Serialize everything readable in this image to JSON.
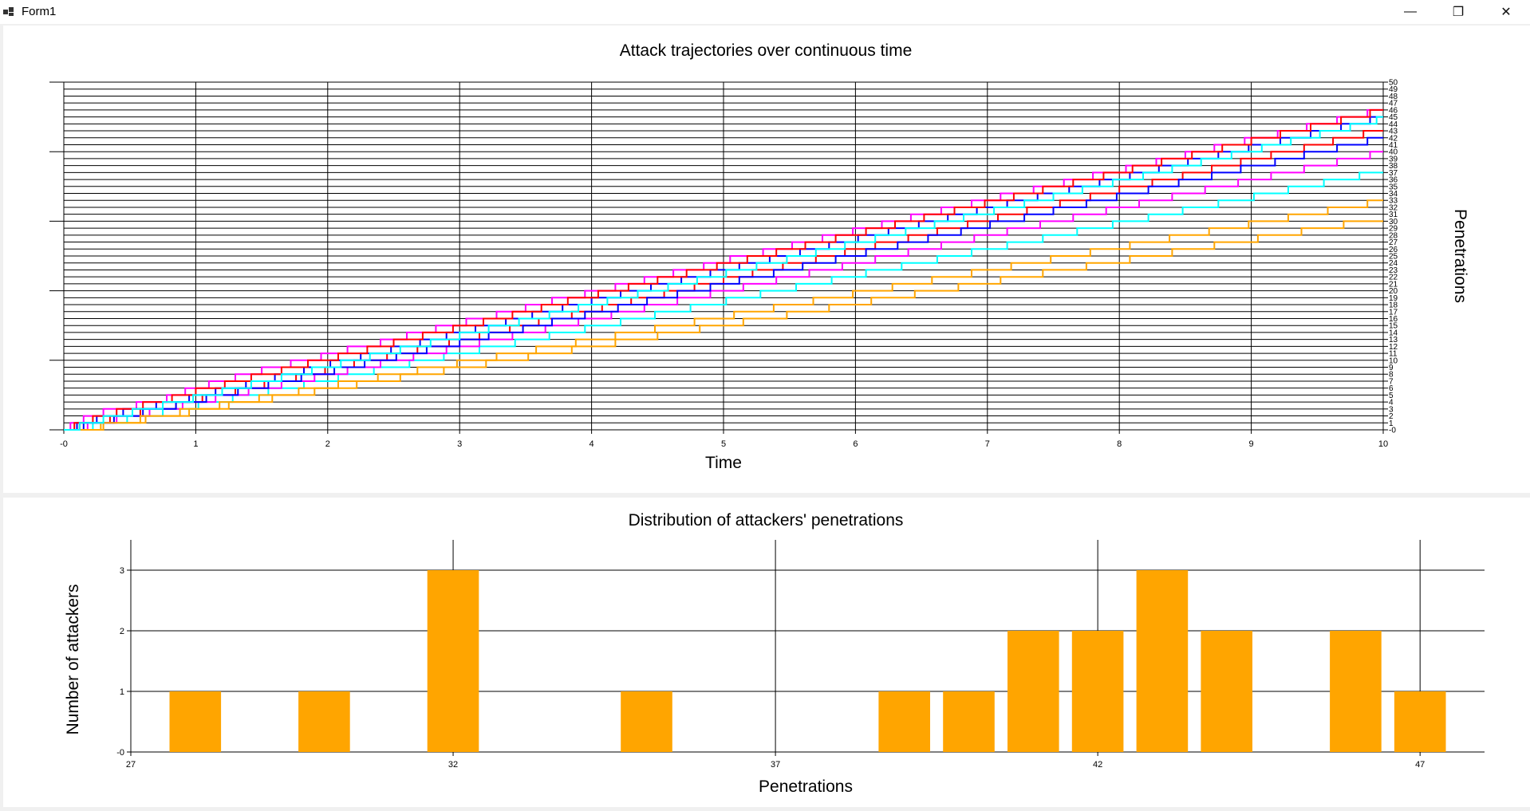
{
  "window": {
    "title": "Form1",
    "minimize_glyph": "—",
    "maximize_glyph": "❐",
    "close_glyph": "✕"
  },
  "chart_data": [
    {
      "type": "line",
      "step": true,
      "title": "Attack trajectories over continuous time",
      "xlabel": "Time",
      "ylabel": "Penetrations",
      "xlim": [
        0,
        10
      ],
      "ylim": [
        0,
        50
      ],
      "x_tick_labels": [
        "-0",
        "1",
        "2",
        "3",
        "4",
        "5",
        "6",
        "7",
        "8",
        "9",
        "10"
      ],
      "y_tick_labels": [
        "-0",
        "1",
        "2",
        "3",
        "4",
        "5",
        "6",
        "7",
        "8",
        "9",
        "10",
        "11",
        "12",
        "13",
        "14",
        "15",
        "16",
        "17",
        "18",
        "19",
        "20",
        "21",
        "22",
        "23",
        "24",
        "25",
        "26",
        "27",
        "28",
        "29",
        "30",
        "31",
        "32",
        "33",
        "34",
        "35",
        "36",
        "37",
        "38",
        "39",
        "40",
        "41",
        "42",
        "43",
        "44",
        "45",
        "46",
        "47",
        "48",
        "49",
        "50"
      ],
      "grid": true,
      "series_colors": [
        "#ff0000",
        "#ff00ff",
        "#0000ff",
        "#ffa500",
        "#00ffff"
      ],
      "series": [
        {
          "x": [
            0.0,
            0.12,
            0.35,
            0.58,
            0.85,
            1.05,
            1.3,
            1.52,
            1.76,
            1.98,
            2.2,
            2.45,
            2.68,
            2.92,
            3.15,
            3.38,
            3.6,
            3.85,
            4.08,
            4.3,
            4.55,
            4.78,
            5.0,
            5.22,
            5.45,
            5.7,
            5.92,
            6.15,
            6.4,
            6.62,
            6.85,
            7.08,
            7.3,
            7.55,
            7.78,
            8.0,
            8.25,
            8.48,
            8.7,
            8.92,
            9.15,
            9.4,
            9.62,
            9.85,
            10.0
          ],
          "y": [
            0,
            1,
            2,
            3,
            4,
            5,
            6,
            7,
            8,
            9,
            10,
            11,
            12,
            13,
            14,
            15,
            16,
            17,
            18,
            19,
            20,
            21,
            22,
            23,
            24,
            25,
            26,
            27,
            28,
            29,
            30,
            31,
            32,
            33,
            34,
            35,
            36,
            37,
            38,
            39,
            40,
            41,
            42,
            43,
            43
          ]
        },
        {
          "x": [
            0.0,
            0.05,
            0.15,
            0.3,
            0.55,
            0.78,
            0.92,
            1.1,
            1.3,
            1.5,
            1.72,
            1.95,
            2.15,
            2.4,
            2.6,
            2.82,
            3.05,
            3.28,
            3.5,
            3.7,
            3.95,
            4.18,
            4.4,
            4.62,
            4.85,
            5.05,
            5.3,
            5.52,
            5.75,
            5.98,
            6.2,
            6.42,
            6.65,
            6.88,
            7.1,
            7.35,
            7.58,
            7.8,
            8.05,
            8.28,
            8.5,
            8.72,
            8.95,
            9.2,
            9.42,
            9.65,
            9.88,
            10.0
          ],
          "y": [
            0,
            1,
            2,
            3,
            4,
            5,
            6,
            7,
            8,
            9,
            10,
            11,
            12,
            13,
            14,
            15,
            16,
            17,
            18,
            19,
            20,
            21,
            22,
            23,
            24,
            25,
            26,
            27,
            28,
            29,
            30,
            31,
            32,
            33,
            34,
            35,
            36,
            37,
            38,
            39,
            40,
            41,
            42,
            43,
            44,
            45,
            46,
            46
          ]
        },
        {
          "x": [
            0.0,
            0.1,
            0.25,
            0.45,
            0.7,
            0.95,
            1.15,
            1.38,
            1.6,
            1.82,
            2.02,
            2.25,
            2.48,
            2.7,
            2.9,
            3.12,
            3.35,
            3.55,
            3.78,
            4.0,
            4.22,
            4.45,
            4.68,
            4.9,
            5.12,
            5.35,
            5.58,
            5.8,
            6.02,
            6.25,
            6.48,
            6.7,
            6.92,
            7.15,
            7.38,
            7.62,
            7.85,
            8.08,
            8.3,
            8.52,
            8.75,
            8.98,
            9.22,
            9.45,
            9.68,
            9.9,
            10.0
          ],
          "y": [
            0,
            1,
            2,
            3,
            4,
            5,
            6,
            7,
            8,
            9,
            10,
            11,
            12,
            13,
            14,
            15,
            16,
            17,
            18,
            19,
            20,
            21,
            22,
            23,
            24,
            25,
            26,
            27,
            28,
            29,
            30,
            31,
            32,
            33,
            34,
            35,
            36,
            37,
            38,
            39,
            40,
            41,
            42,
            43,
            44,
            45,
            45
          ]
        },
        {
          "x": [
            0.0,
            0.3,
            0.62,
            0.95,
            1.25,
            1.58,
            1.9,
            2.22,
            2.55,
            2.88,
            3.2,
            3.52,
            3.85,
            4.18,
            4.5,
            4.82,
            5.15,
            5.48,
            5.8,
            6.12,
            6.45,
            6.78,
            7.1,
            7.42,
            7.75,
            8.08,
            8.4,
            8.72,
            9.05,
            9.38,
            9.7,
            10.0
          ],
          "y": [
            0,
            1,
            2,
            3,
            4,
            5,
            6,
            7,
            8,
            9,
            10,
            11,
            12,
            13,
            14,
            15,
            16,
            17,
            18,
            19,
            20,
            21,
            22,
            23,
            24,
            25,
            26,
            27,
            28,
            29,
            30,
            30
          ]
        },
        {
          "x": [
            0.0,
            0.22,
            0.48,
            0.75,
            1.02,
            1.28,
            1.55,
            1.82,
            2.08,
            2.35,
            2.62,
            2.88,
            3.15,
            3.42,
            3.68,
            3.95,
            4.22,
            4.48,
            4.75,
            5.02,
            5.28,
            5.55,
            5.82,
            6.08,
            6.35,
            6.62,
            6.88,
            7.15,
            7.42,
            7.68,
            7.95,
            8.22,
            8.48,
            8.75,
            9.02,
            9.28,
            9.55,
            9.82,
            10.0
          ],
          "y": [
            0,
            1,
            2,
            3,
            4,
            5,
            6,
            7,
            8,
            9,
            10,
            11,
            12,
            13,
            14,
            15,
            16,
            17,
            18,
            19,
            20,
            21,
            22,
            23,
            24,
            25,
            26,
            27,
            28,
            29,
            30,
            31,
            32,
            33,
            34,
            35,
            36,
            37,
            37
          ]
        },
        {
          "x": [
            0.0,
            0.08,
            0.22,
            0.4,
            0.6,
            0.82,
            1.0,
            1.22,
            1.42,
            1.65,
            1.85,
            2.08,
            2.3,
            2.5,
            2.72,
            2.95,
            3.18,
            3.4,
            3.62,
            3.82,
            4.05,
            4.28,
            4.5,
            4.72,
            4.95,
            5.18,
            5.4,
            5.62,
            5.85,
            6.08,
            6.3,
            6.52,
            6.75,
            6.98,
            7.2,
            7.42,
            7.65,
            7.88,
            8.1,
            8.32,
            8.55,
            8.78,
            9.0,
            9.22,
            9.45,
            9.68,
            9.9,
            10.0
          ],
          "y": [
            0,
            1,
            2,
            3,
            4,
            5,
            6,
            7,
            8,
            9,
            10,
            11,
            12,
            13,
            14,
            15,
            16,
            17,
            18,
            19,
            20,
            21,
            22,
            23,
            24,
            25,
            26,
            27,
            28,
            29,
            30,
            31,
            32,
            33,
            34,
            35,
            36,
            37,
            38,
            39,
            40,
            41,
            42,
            43,
            44,
            45,
            46,
            46
          ]
        },
        {
          "x": [
            0.0,
            0.18,
            0.4,
            0.65,
            0.9,
            1.15,
            1.4,
            1.65,
            1.9,
            2.15,
            2.4,
            2.65,
            2.9,
            3.15,
            3.4,
            3.65,
            3.9,
            4.15,
            4.4,
            4.65,
            4.9,
            5.15,
            5.4,
            5.65,
            5.9,
            6.15,
            6.4,
            6.65,
            6.9,
            7.15,
            7.4,
            7.65,
            7.9,
            8.15,
            8.4,
            8.65,
            8.9,
            9.15,
            9.4,
            9.65,
            9.9,
            10.0
          ],
          "y": [
            0,
            1,
            2,
            3,
            4,
            5,
            6,
            7,
            8,
            9,
            10,
            11,
            12,
            13,
            14,
            15,
            16,
            17,
            18,
            19,
            20,
            21,
            22,
            23,
            24,
            25,
            26,
            27,
            28,
            29,
            30,
            31,
            32,
            33,
            34,
            35,
            36,
            37,
            38,
            39,
            40,
            40
          ]
        },
        {
          "x": [
            0.0,
            0.15,
            0.38,
            0.6,
            0.85,
            1.08,
            1.32,
            1.55,
            1.8,
            2.05,
            2.28,
            2.52,
            2.75,
            3.0,
            3.22,
            3.48,
            3.7,
            3.95,
            4.2,
            4.42,
            4.65,
            4.9,
            5.12,
            5.38,
            5.6,
            5.85,
            6.08,
            6.32,
            6.55,
            6.8,
            7.02,
            7.28,
            7.5,
            7.75,
            7.98,
            8.22,
            8.45,
            8.7,
            8.92,
            9.18,
            9.4,
            9.65,
            9.88,
            10.0
          ],
          "y": [
            0,
            1,
            2,
            3,
            4,
            5,
            6,
            7,
            8,
            9,
            10,
            11,
            12,
            13,
            14,
            15,
            16,
            17,
            18,
            19,
            20,
            21,
            22,
            23,
            24,
            25,
            26,
            27,
            28,
            29,
            30,
            31,
            32,
            33,
            34,
            35,
            36,
            37,
            38,
            39,
            40,
            41,
            42,
            42
          ]
        },
        {
          "x": [
            0.0,
            0.28,
            0.58,
            0.88,
            1.18,
            1.48,
            1.78,
            2.08,
            2.38,
            2.68,
            2.98,
            3.28,
            3.58,
            3.88,
            4.18,
            4.48,
            4.78,
            5.08,
            5.38,
            5.68,
            5.98,
            6.28,
            6.58,
            6.88,
            7.18,
            7.48,
            7.78,
            8.08,
            8.38,
            8.68,
            8.98,
            9.28,
            9.58,
            9.88,
            10.0
          ],
          "y": [
            0,
            1,
            2,
            3,
            4,
            5,
            6,
            7,
            8,
            9,
            10,
            11,
            12,
            13,
            14,
            15,
            16,
            17,
            18,
            19,
            20,
            21,
            22,
            23,
            24,
            25,
            26,
            27,
            28,
            29,
            30,
            31,
            32,
            33,
            33
          ]
        },
        {
          "x": [
            0.0,
            0.12,
            0.3,
            0.52,
            0.75,
            0.98,
            1.2,
            1.42,
            1.65,
            1.88,
            2.1,
            2.32,
            2.55,
            2.78,
            3.0,
            3.22,
            3.45,
            3.68,
            3.9,
            4.12,
            4.35,
            4.58,
            4.8,
            5.02,
            5.25,
            5.48,
            5.7,
            5.92,
            6.15,
            6.38,
            6.6,
            6.82,
            7.05,
            7.28,
            7.5,
            7.72,
            7.95,
            8.18,
            8.4,
            8.62,
            8.85,
            9.08,
            9.3,
            9.52,
            9.75,
            9.95,
            10.0
          ],
          "y": [
            0,
            1,
            2,
            3,
            4,
            5,
            6,
            7,
            8,
            9,
            10,
            11,
            12,
            13,
            14,
            15,
            16,
            17,
            18,
            19,
            20,
            21,
            22,
            23,
            24,
            25,
            26,
            27,
            28,
            29,
            30,
            31,
            32,
            33,
            34,
            35,
            36,
            37,
            38,
            39,
            40,
            41,
            42,
            43,
            44,
            45,
            45
          ]
        }
      ]
    },
    {
      "type": "bar",
      "title": "Distribution of attackers' penetrations",
      "xlabel": "Penetrations",
      "ylabel": "Number of attackers",
      "xlim": [
        27,
        48
      ],
      "ylim": [
        0,
        3.5
      ],
      "x_tick_labels": [
        "27",
        "32",
        "37",
        "42",
        "47"
      ],
      "y_tick_labels": [
        "-0",
        "1",
        "2",
        "3"
      ],
      "grid": true,
      "bar_color": "#ffa500",
      "categories": [
        28,
        30,
        32,
        35,
        39,
        40,
        41,
        42,
        43,
        44,
        46,
        47
      ],
      "values": [
        1,
        1,
        3,
        1,
        1,
        1,
        2,
        2,
        3,
        2,
        2,
        1
      ]
    }
  ]
}
